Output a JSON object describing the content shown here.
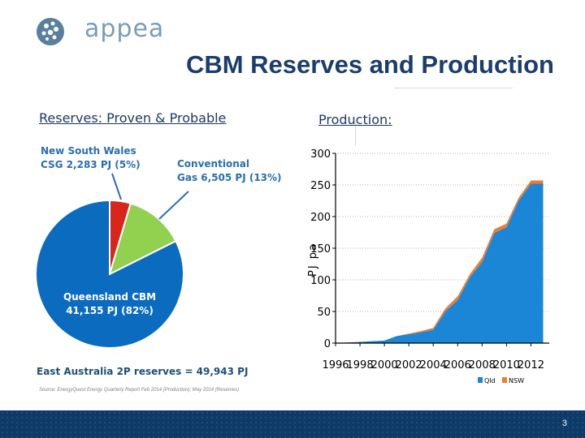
{
  "header": {
    "logo_text": "appea",
    "title": "CBM Reserves and Production"
  },
  "left_panel": {
    "subtitle": "Reserves:  Proven & Probable",
    "total_text": "East Australia 2P reserves = 49,943 PJ",
    "source_text": "Source: EnergyQuest Energy Quarterly Report Feb 2014 (Production); May 2014 (Reserves)"
  },
  "right_panel": {
    "subtitle": "Production:"
  },
  "footer": {
    "page_number": "3"
  },
  "colors": {
    "title": "#1a3d6d",
    "qld": "#0b6bbf",
    "nsw": "#d9261c",
    "conventional": "#92d050",
    "area_qld": "#1b86d6",
    "area_nsw": "#ed7d31",
    "footer": "#0d3a66"
  },
  "chart_data": [
    {
      "type": "pie",
      "title": "",
      "slices": [
        {
          "name": "Queensland CBM",
          "value": 41155,
          "pct": 82,
          "color": "#0b6bbf",
          "label_lines": [
            "Queensland CBM",
            "41,155  PJ  (82%)"
          ]
        },
        {
          "name": "New South Wales CSG",
          "value": 2283,
          "pct": 5,
          "color": "#d9261c",
          "label_lines": [
            "New South Wales",
            "CSG 2,283 PJ (5%)"
          ]
        },
        {
          "name": "Conventional Gas",
          "value": 6505,
          "pct": 13,
          "color": "#92d050",
          "label_lines": [
            "Conventional",
            "Gas 6,505 PJ (13%)"
          ]
        }
      ]
    },
    {
      "type": "area",
      "title": "",
      "xlabel": "",
      "ylabel": "PJ pa",
      "xlim": [
        1996,
        2013.5
      ],
      "ylim": [
        0,
        300
      ],
      "yticks": [
        0,
        50,
        100,
        150,
        200,
        250,
        300
      ],
      "xticks": [
        "1996",
        "1998",
        "2000",
        "2002",
        "2004",
        "2006",
        "2008",
        "2010",
        "2012"
      ],
      "grid": true,
      "legend": "bottom",
      "x": [
        1996,
        1997,
        1998,
        1999,
        2000,
        2001,
        2002,
        2003,
        2004,
        2005,
        2006,
        2007,
        2008,
        2009,
        2010,
        2011,
        2012,
        2013
      ],
      "series": [
        {
          "name": "Qld",
          "color": "#1b86d6",
          "values": [
            0,
            1,
            2,
            3,
            4,
            11,
            14,
            17,
            21,
            50,
            68,
            104,
            128,
            174,
            183,
            225,
            252,
            252
          ]
        },
        {
          "name": "NSW",
          "color": "#ed7d31",
          "values": [
            0,
            0,
            0,
            0,
            0,
            0,
            1,
            2,
            3,
            5,
            6,
            5,
            7,
            6,
            6,
            5,
            5,
            5
          ]
        }
      ]
    }
  ]
}
